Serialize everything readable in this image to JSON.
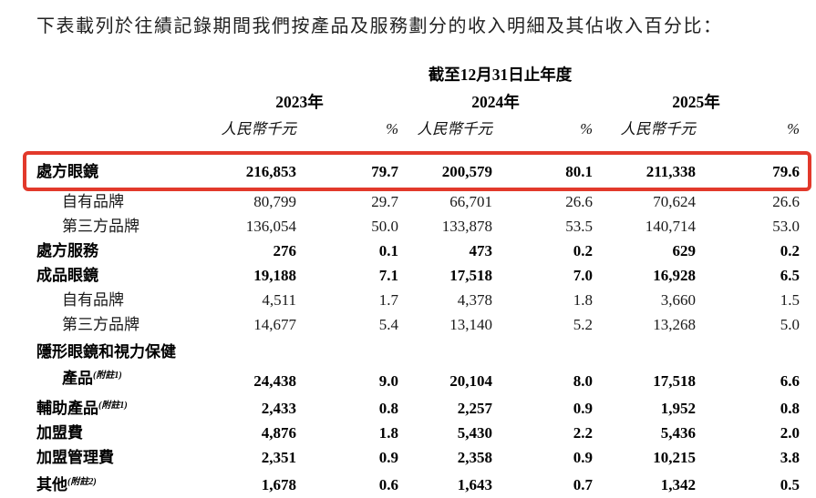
{
  "intro": "下表載列於往績記錄期間我們按產品及服務劃分的收入明細及其佔收入百分比：",
  "table": {
    "period_header": "截至12月31日止年度",
    "years": [
      "2023年",
      "2024年",
      "2025年"
    ],
    "unit_label": "人民幣千元",
    "percent_label": "%",
    "highlight_color": "#e2392b",
    "rows": [
      {
        "label": "處方眼鏡",
        "bold": true,
        "highlight": true,
        "values": [
          "216,853",
          "79.7",
          "200,579",
          "80.1",
          "211,338",
          "79.6"
        ]
      },
      {
        "label": "自有品牌",
        "bold": false,
        "indent": true,
        "values": [
          "80,799",
          "29.7",
          "66,701",
          "26.6",
          "70,624",
          "26.6"
        ]
      },
      {
        "label": "第三方品牌",
        "bold": false,
        "indent": true,
        "values": [
          "136,054",
          "50.0",
          "133,878",
          "53.5",
          "140,714",
          "53.0"
        ]
      },
      {
        "label": "處方服務",
        "bold": true,
        "values": [
          "276",
          "0.1",
          "473",
          "0.2",
          "629",
          "0.2"
        ]
      },
      {
        "label": "成品眼鏡",
        "bold": true,
        "values": [
          "19,188",
          "7.1",
          "17,518",
          "7.0",
          "16,928",
          "6.5"
        ]
      },
      {
        "label": "自有品牌",
        "bold": false,
        "indent": true,
        "values": [
          "4,511",
          "1.7",
          "4,378",
          "1.8",
          "3,660",
          "1.5"
        ]
      },
      {
        "label": "第三方品牌",
        "bold": false,
        "indent": true,
        "values": [
          "14,677",
          "5.4",
          "13,140",
          "5.2",
          "13,268",
          "5.0"
        ]
      },
      {
        "label": "隱形眼鏡和視力保健",
        "label2": "產品",
        "note": "(附註1)",
        "bold": true,
        "values": [
          "24,438",
          "9.0",
          "20,104",
          "8.0",
          "17,518",
          "6.6"
        ]
      },
      {
        "label": "輔助產品",
        "note": "(附註1)",
        "bold": true,
        "values": [
          "2,433",
          "0.8",
          "2,257",
          "0.9",
          "1,952",
          "0.8"
        ]
      },
      {
        "label": "加盟費",
        "bold": true,
        "values": [
          "4,876",
          "1.8",
          "5,430",
          "2.2",
          "5,436",
          "2.0"
        ]
      },
      {
        "label": "加盟管理費",
        "bold": true,
        "values": [
          "2,351",
          "0.9",
          "2,358",
          "0.9",
          "10,215",
          "3.8"
        ]
      },
      {
        "label": "其他",
        "note": "(附註2)",
        "bold": true,
        "values": [
          "1,678",
          "0.6",
          "1,643",
          "0.7",
          "1,342",
          "0.5"
        ]
      }
    ]
  }
}
